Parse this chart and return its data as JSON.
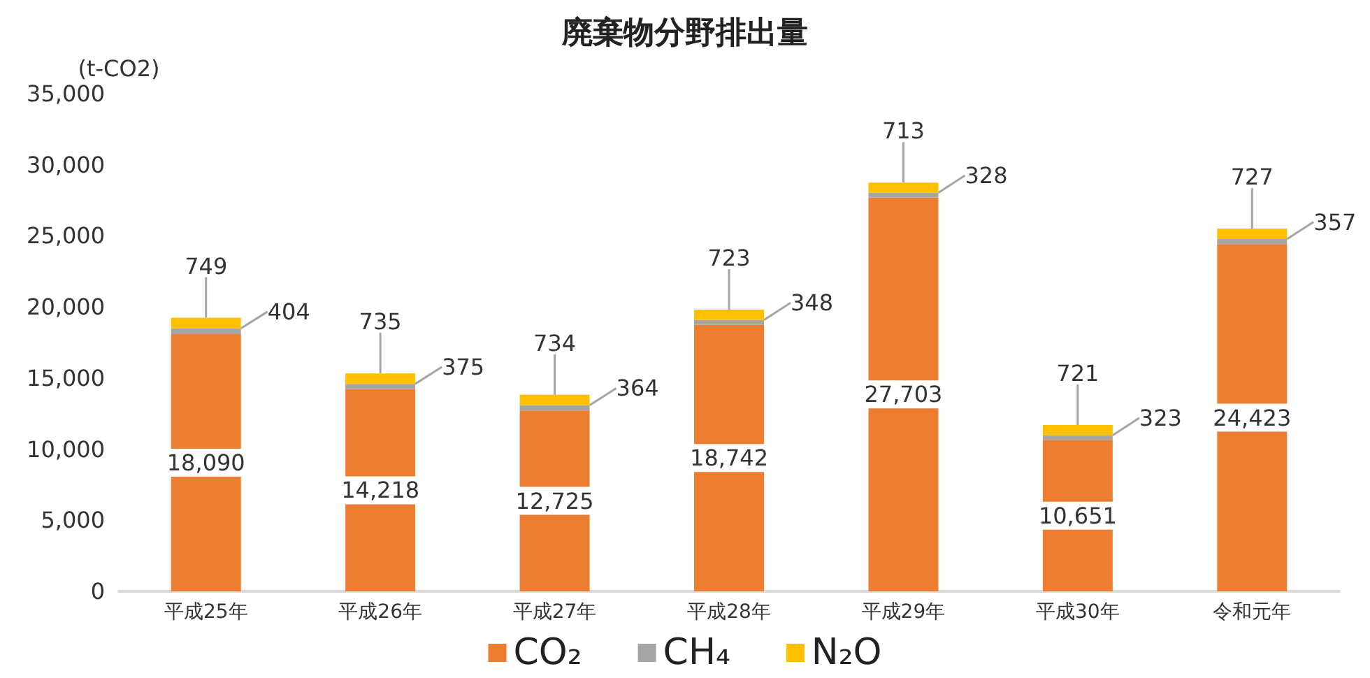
{
  "chart_data": {
    "type": "bar",
    "title": "廃棄物分野排出量",
    "ylabel": "(t-CO2)",
    "categories": [
      "平成25年",
      "平成26年",
      "平成27年",
      "平成28年",
      "平成29年",
      "平成30年",
      "令和元年"
    ],
    "stacked": true,
    "series": [
      {
        "name": "CO₂",
        "color": "#ed7d31",
        "values": [
          18090,
          14218,
          12725,
          18742,
          27703,
          10651,
          24423
        ],
        "value_labels": [
          "18,090",
          "14,218",
          "12,725",
          "18,742",
          "27,703",
          "10,651",
          "24,423"
        ]
      },
      {
        "name": "CH₄",
        "color": "#a5a5a5",
        "values": [
          404,
          375,
          364,
          348,
          328,
          323,
          357
        ],
        "value_labels": [
          "404",
          "375",
          "364",
          "348",
          "328",
          "323",
          "357"
        ]
      },
      {
        "name": "N₂O",
        "color": "#ffc000",
        "values": [
          749,
          735,
          734,
          723,
          713,
          721,
          727
        ],
        "value_labels": [
          "749",
          "735",
          "734",
          "723",
          "713",
          "721",
          "727"
        ]
      }
    ],
    "ylim": [
      0,
      35000
    ],
    "yticks": [
      0,
      {
        "value": 5000,
        "label": "5,000"
      },
      {
        "value": 10000,
        "label": "10,000"
      },
      {
        "value": 15000,
        "label": "15,000"
      },
      {
        "value": 20000,
        "label": "20,000"
      },
      {
        "value": 25000,
        "label": "25,000"
      },
      {
        "value": 30000,
        "label": "30,000"
      },
      {
        "value": 35000,
        "label": "35,000"
      }
    ],
    "legend": "bottom"
  }
}
